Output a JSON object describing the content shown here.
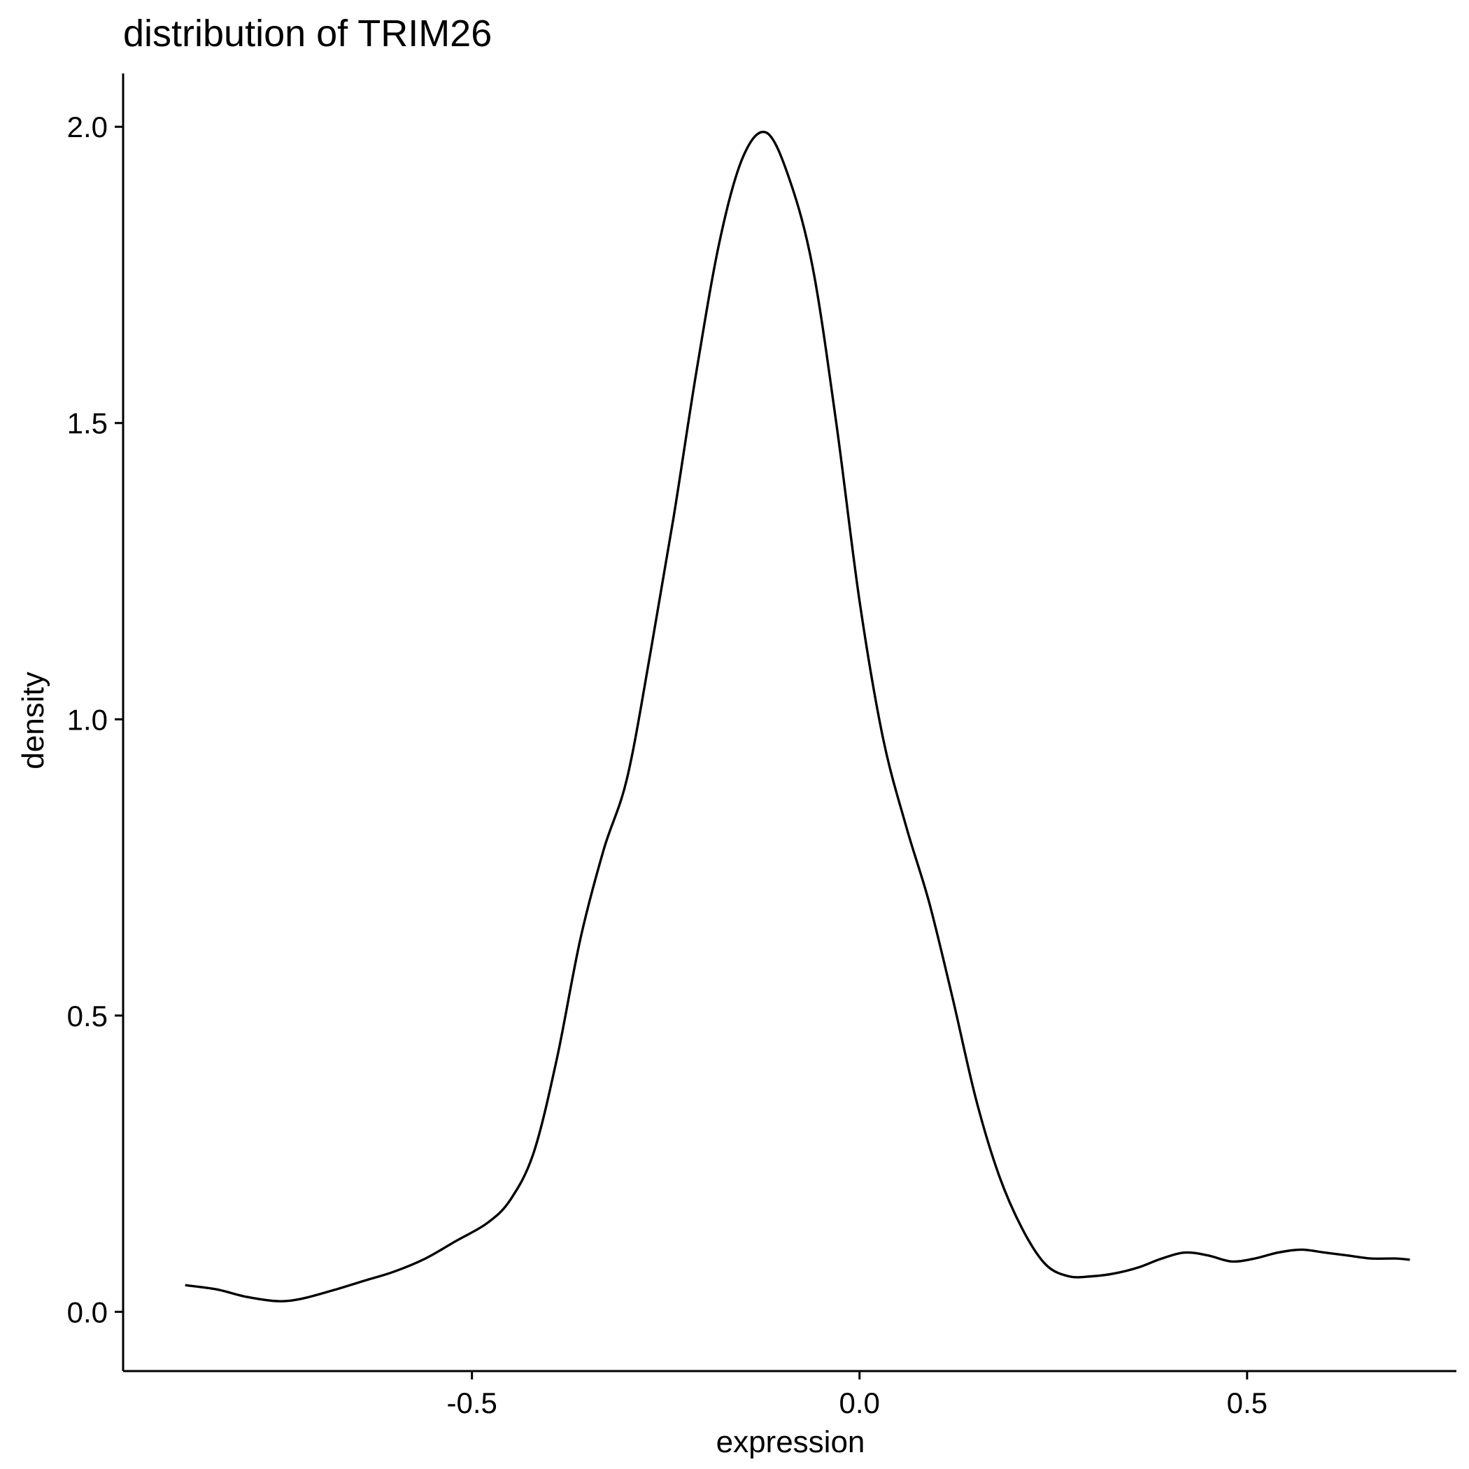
{
  "chart_data": {
    "type": "line",
    "title": "distribution of TRIM26",
    "xlabel": "expression",
    "ylabel": "density",
    "xlim": [
      -0.95,
      0.77
    ],
    "ylim": [
      -0.1,
      2.09
    ],
    "x_ticks": [
      {
        "value": -0.5,
        "label": "-0.5"
      },
      {
        "value": 0.0,
        "label": "0.0"
      },
      {
        "value": 0.5,
        "label": "0.5"
      }
    ],
    "y_ticks": [
      {
        "value": 0.0,
        "label": "0.0"
      },
      {
        "value": 0.5,
        "label": "0.5"
      },
      {
        "value": 1.0,
        "label": "1.0"
      },
      {
        "value": 1.5,
        "label": "1.5"
      },
      {
        "value": 2.0,
        "label": "2.0"
      }
    ],
    "grid": false,
    "series": [
      {
        "color": "#000000",
        "x": [
          -0.87,
          -0.83,
          -0.79,
          -0.75,
          -0.72,
          -0.68,
          -0.64,
          -0.6,
          -0.56,
          -0.52,
          -0.48,
          -0.45,
          -0.42,
          -0.39,
          -0.36,
          -0.33,
          -0.3,
          -0.27,
          -0.24,
          -0.21,
          -0.18,
          -0.15,
          -0.12,
          -0.09,
          -0.06,
          -0.03,
          0.0,
          0.03,
          0.06,
          0.09,
          0.12,
          0.15,
          0.18,
          0.21,
          0.24,
          0.27,
          0.3,
          0.33,
          0.36,
          0.39,
          0.42,
          0.45,
          0.48,
          0.51,
          0.54,
          0.57,
          0.6,
          0.63,
          0.66,
          0.69,
          0.71
        ],
        "y": [
          0.045,
          0.038,
          0.025,
          0.018,
          0.022,
          0.036,
          0.052,
          0.068,
          0.09,
          0.12,
          0.15,
          0.19,
          0.27,
          0.43,
          0.63,
          0.78,
          0.9,
          1.11,
          1.34,
          1.59,
          1.81,
          1.95,
          1.99,
          1.91,
          1.76,
          1.5,
          1.2,
          0.97,
          0.82,
          0.69,
          0.53,
          0.36,
          0.23,
          0.14,
          0.08,
          0.06,
          0.06,
          0.065,
          0.075,
          0.09,
          0.1,
          0.095,
          0.085,
          0.09,
          0.1,
          0.105,
          0.1,
          0.095,
          0.09,
          0.09,
          0.088
        ]
      }
    ]
  }
}
